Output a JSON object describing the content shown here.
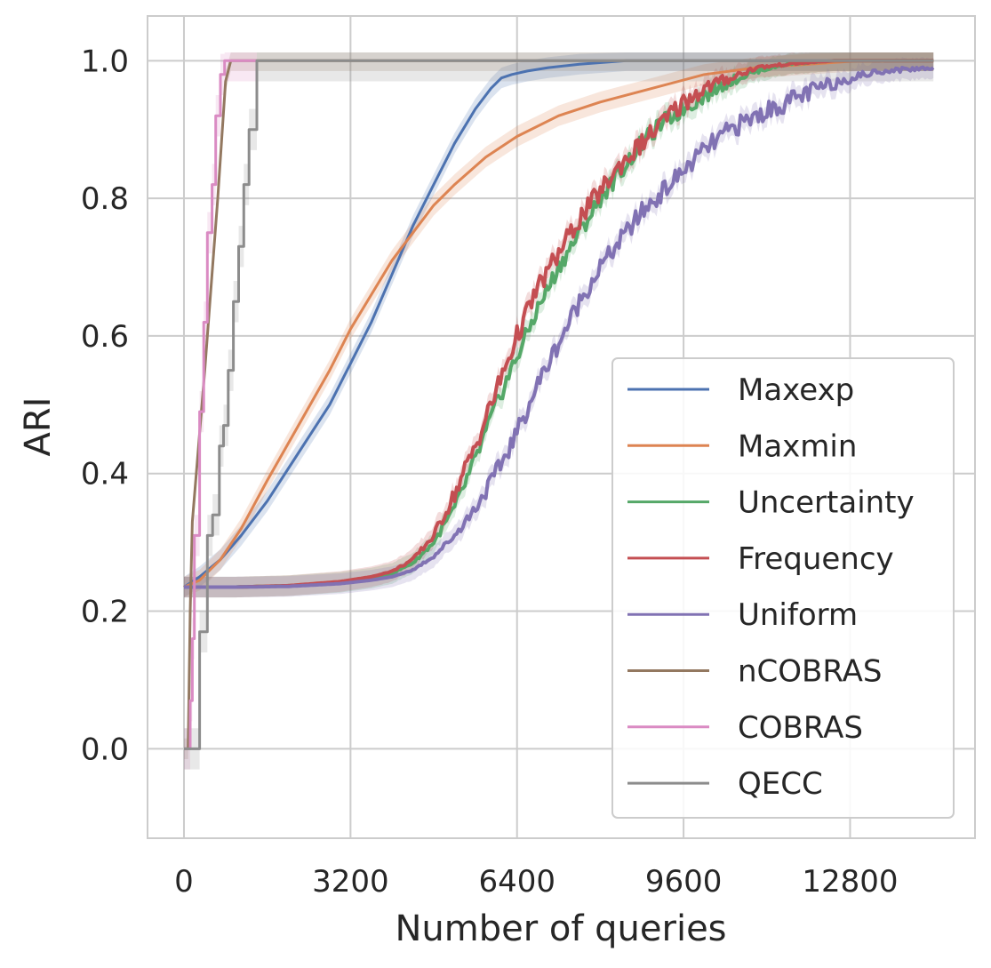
{
  "chart_data": {
    "type": "line",
    "xlabel": "Number of queries",
    "ylabel": "ARI",
    "xlim": [
      -700,
      15200
    ],
    "ylim": [
      -0.13,
      1.065
    ],
    "xticks": [
      0,
      3200,
      6400,
      9600,
      12800
    ],
    "xtick_labels": [
      "0",
      "3200",
      "6400",
      "9600",
      "12800"
    ],
    "yticks": [
      0.0,
      0.2,
      0.4,
      0.6,
      0.8,
      1.0
    ],
    "ytick_labels": [
      "0.0",
      "0.2",
      "0.4",
      "0.6",
      "0.8",
      "1.0"
    ],
    "grid": true,
    "legend_position": "lower-right",
    "series": [
      {
        "name": "Maxexp",
        "color": "#4c72b0",
        "x": [
          0,
          300,
          700,
          1100,
          1600,
          2200,
          2800,
          3200,
          3600,
          4000,
          4400,
          4800,
          5200,
          5600,
          5900,
          6100,
          6300,
          6600,
          7000,
          7600,
          8500,
          10000,
          12000,
          14400
        ],
        "y": [
          0.235,
          0.25,
          0.275,
          0.31,
          0.36,
          0.43,
          0.5,
          0.56,
          0.62,
          0.69,
          0.76,
          0.82,
          0.88,
          0.93,
          0.96,
          0.975,
          0.98,
          0.985,
          0.99,
          0.995,
          1.0,
          1.0,
          1.0,
          1.0
        ]
      },
      {
        "name": "Maxmin",
        "color": "#dd8452",
        "x": [
          0,
          300,
          700,
          1100,
          1600,
          2200,
          2800,
          3200,
          3600,
          4000,
          4400,
          4800,
          5200,
          5800,
          6400,
          7200,
          8000,
          9000,
          10000,
          11000,
          12000,
          13000,
          14400
        ],
        "y": [
          0.235,
          0.245,
          0.275,
          0.32,
          0.39,
          0.47,
          0.55,
          0.61,
          0.66,
          0.71,
          0.75,
          0.79,
          0.82,
          0.86,
          0.89,
          0.92,
          0.94,
          0.96,
          0.98,
          0.99,
          0.995,
          1.0,
          1.0
        ]
      },
      {
        "name": "Uncertainty",
        "color": "#55a868",
        "x": [
          0,
          1000,
          2000,
          3000,
          3600,
          4000,
          4400,
          4800,
          5200,
          5600,
          6000,
          6400,
          6800,
          7200,
          7600,
          8000,
          8400,
          8800,
          9200,
          9600,
          10000,
          10500,
          11000,
          11600,
          12500,
          13500,
          14400
        ],
        "y": [
          0.235,
          0.235,
          0.237,
          0.242,
          0.248,
          0.255,
          0.27,
          0.3,
          0.35,
          0.42,
          0.5,
          0.57,
          0.64,
          0.7,
          0.75,
          0.8,
          0.84,
          0.88,
          0.91,
          0.93,
          0.95,
          0.97,
          0.985,
          0.995,
          1.0,
          1.0,
          1.0
        ]
      },
      {
        "name": "Frequency",
        "color": "#c44e52",
        "x": [
          0,
          1000,
          2000,
          3000,
          3600,
          4000,
          4400,
          4800,
          5200,
          5600,
          6000,
          6400,
          6800,
          7200,
          7600,
          8000,
          8400,
          8800,
          9200,
          9600,
          10000,
          10500,
          11000,
          11600,
          12500,
          13500,
          14400
        ],
        "y": [
          0.235,
          0.235,
          0.237,
          0.243,
          0.25,
          0.258,
          0.275,
          0.31,
          0.37,
          0.44,
          0.52,
          0.6,
          0.67,
          0.72,
          0.77,
          0.81,
          0.85,
          0.88,
          0.91,
          0.94,
          0.96,
          0.975,
          0.99,
          0.995,
          1.0,
          1.0,
          1.0
        ]
      },
      {
        "name": "Uniform",
        "color": "#8172b3",
        "x": [
          0,
          1000,
          2000,
          3000,
          3600,
          4000,
          4400,
          4800,
          5200,
          5600,
          6000,
          6400,
          6800,
          7200,
          7600,
          8000,
          8400,
          8800,
          9200,
          9600,
          10000,
          10500,
          11000,
          11600,
          12200,
          12800,
          13400,
          14400
        ],
        "y": [
          0.235,
          0.235,
          0.236,
          0.24,
          0.245,
          0.25,
          0.26,
          0.28,
          0.31,
          0.35,
          0.4,
          0.46,
          0.53,
          0.59,
          0.65,
          0.7,
          0.74,
          0.78,
          0.81,
          0.84,
          0.87,
          0.9,
          0.92,
          0.94,
          0.96,
          0.975,
          0.985,
          0.99
        ]
      },
      {
        "name": "nCOBRAS",
        "color": "#937860",
        "x": [
          0,
          80,
          120,
          160,
          400,
          650,
          800,
          900,
          14400
        ],
        "y": [
          0.0,
          0.0,
          0.2,
          0.33,
          0.55,
          0.8,
          0.97,
          1.0,
          1.0
        ],
        "step": false
      },
      {
        "name": "COBRAS",
        "color": "#da8bc3",
        "x": [
          0,
          80,
          120,
          160,
          200,
          300,
          380,
          450,
          540,
          610,
          700,
          780,
          880,
          1400
        ],
        "y": [
          0.0,
          0.0,
          0.07,
          0.16,
          0.31,
          0.49,
          0.62,
          0.75,
          0.82,
          0.92,
          0.98,
          1.0,
          1.0,
          1.0
        ],
        "step": true
      },
      {
        "name": "QECC",
        "color": "#8c8c8c",
        "x": [
          0,
          240,
          300,
          450,
          550,
          680,
          760,
          850,
          950,
          1050,
          1150,
          1250,
          1400,
          14400
        ],
        "y": [
          0.0,
          0.0,
          0.17,
          0.31,
          0.34,
          0.44,
          0.47,
          0.55,
          0.65,
          0.73,
          0.82,
          0.9,
          1.0,
          1.0
        ],
        "step": true
      }
    ]
  }
}
